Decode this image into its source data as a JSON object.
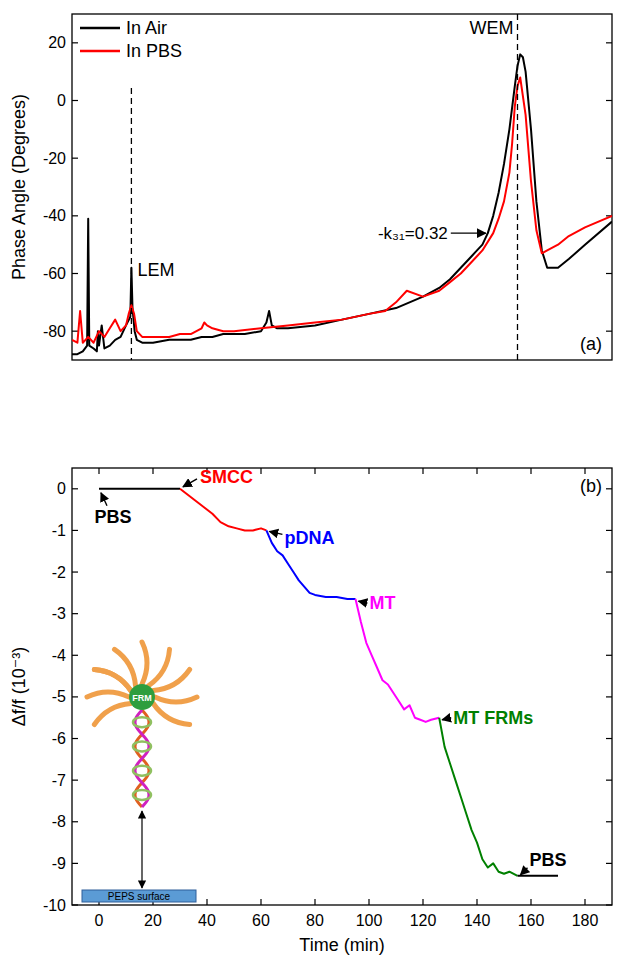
{
  "chart_data": [
    {
      "type": "line",
      "panel_label": "(a)",
      "y_label": "Phase Angle (Degrees)",
      "xlim": [
        0,
        100
      ],
      "ylim": [
        -90,
        30
      ],
      "yticks": [
        -80,
        -60,
        -40,
        -20,
        0,
        20
      ],
      "tick_labels": "y",
      "legend": "top-left",
      "series": [
        {
          "name": "In Air",
          "color": "#000000",
          "x": [
            0,
            1,
            2,
            2.8,
            3,
            3.2,
            4,
            4.6,
            4.8,
            5,
            5.5,
            6,
            7,
            8,
            9,
            10,
            10.8,
            11,
            11.2,
            11.6,
            12,
            13,
            15,
            18,
            20,
            22,
            24,
            25,
            26,
            28,
            32,
            35,
            36,
            36.5,
            37,
            38,
            40,
            45,
            50,
            55,
            60,
            65,
            68,
            70,
            72,
            74,
            75,
            76,
            77,
            78,
            79,
            80,
            81,
            82,
            82.5,
            83,
            83.5,
            84,
            85,
            86,
            87,
            88,
            90,
            92,
            95,
            100
          ],
          "values": [
            -88,
            -88,
            -87,
            -85,
            -41,
            -85,
            -86,
            -87,
            -80,
            -85,
            -78,
            -86,
            -85,
            -83,
            -82,
            -78,
            -75,
            -58,
            -72,
            -80,
            -83,
            -84,
            -84,
            -83,
            -83,
            -83,
            -82,
            -82,
            -82,
            -81,
            -81,
            -80,
            -77,
            -73,
            -78,
            -79,
            -79,
            -78,
            -76,
            -74,
            -72,
            -68,
            -65,
            -62,
            -58,
            -54,
            -52,
            -50,
            -46,
            -40,
            -32,
            -22,
            -10,
            5,
            12,
            16,
            15,
            10,
            -10,
            -35,
            -52,
            -58,
            -58,
            -55,
            -50,
            -42
          ]
        },
        {
          "name": "In PBS",
          "color": "#ff0000",
          "x": [
            0,
            1,
            1.5,
            2,
            2.5,
            3,
            4,
            5,
            6,
            7,
            8,
            9,
            10,
            10.5,
            11,
            11.5,
            12,
            13,
            15,
            18,
            20,
            22,
            24,
            24.5,
            25,
            26,
            28,
            30,
            35,
            40,
            45,
            50,
            55,
            58,
            60,
            62,
            65,
            68,
            70,
            72,
            74,
            76,
            78,
            79,
            80,
            81,
            81.5,
            82,
            82.5,
            83,
            84,
            85,
            86,
            87,
            88,
            90,
            92,
            95,
            100
          ],
          "values": [
            -83,
            -84,
            -73,
            -84,
            -83,
            -82,
            -84,
            -80,
            -82,
            -79,
            -76,
            -80,
            -78,
            -74,
            -71,
            -74,
            -80,
            -82,
            -82,
            -82,
            -81,
            -81,
            -79,
            -77,
            -78,
            -79,
            -80,
            -80,
            -79,
            -78,
            -77,
            -76,
            -74,
            -73,
            -70,
            -66,
            -68,
            -66,
            -63,
            -60,
            -56,
            -52,
            -46,
            -41,
            -35,
            -25,
            -15,
            -2,
            5,
            8,
            -5,
            -28,
            -45,
            -53,
            -52,
            -50,
            -47,
            -44,
            -40
          ]
        }
      ],
      "annotations": [
        {
          "text": "LEM",
          "x": 11,
          "line_style": "dashed"
        },
        {
          "text": "WEM",
          "x": 82.5,
          "line_style": "dashed"
        },
        {
          "text": "-k₃₁=0.32",
          "x": 77,
          "y": -46
        }
      ]
    },
    {
      "type": "line",
      "panel_label": "(b)",
      "x_label": "Time (min)",
      "y_label": "Δf/f (10⁻³)",
      "xlim": [
        -10,
        190
      ],
      "xticks": [
        0,
        20,
        40,
        60,
        80,
        100,
        120,
        140,
        160,
        180
      ],
      "ylim": [
        -10,
        0.5
      ],
      "yticks": [
        0,
        -1,
        -2,
        -3,
        -4,
        -5,
        -6,
        -7,
        -8,
        -9,
        -10
      ],
      "series": [
        {
          "name": "PBS",
          "color": "#000000",
          "x": [
            0,
            10,
            20,
            30
          ],
          "values": [
            0,
            0,
            0,
            0
          ]
        },
        {
          "name": "SMCC",
          "color": "#ff0000",
          "x": [
            30,
            33,
            36,
            39,
            42,
            45,
            48,
            51,
            54,
            57,
            60,
            62
          ],
          "values": [
            0,
            -0.15,
            -0.3,
            -0.45,
            -0.6,
            -0.8,
            -0.9,
            -0.95,
            -1.0,
            -1.0,
            -0.95,
            -1.0
          ]
        },
        {
          "name": "pDNA",
          "color": "#0000ff",
          "x": [
            62,
            64,
            66,
            68,
            70,
            72,
            74,
            76,
            78,
            80,
            84,
            88,
            92,
            95
          ],
          "values": [
            -1.0,
            -1.3,
            -1.5,
            -1.6,
            -1.8,
            -2.0,
            -2.2,
            -2.35,
            -2.5,
            -2.55,
            -2.6,
            -2.6,
            -2.65,
            -2.65
          ]
        },
        {
          "name": "MT",
          "color": "#ff00ff",
          "x": [
            95,
            97,
            99,
            101,
            103,
            105,
            107,
            109,
            111,
            113,
            115,
            117,
            119,
            121,
            123,
            126
          ],
          "values": [
            -2.65,
            -3.2,
            -3.7,
            -4.0,
            -4.3,
            -4.6,
            -4.7,
            -4.9,
            -5.1,
            -5.3,
            -5.2,
            -5.5,
            -5.55,
            -5.6,
            -5.55,
            -5.5
          ]
        },
        {
          "name": "MT FRMs",
          "color": "#008000",
          "x": [
            126,
            128,
            130,
            132,
            134,
            136,
            138,
            140,
            142,
            144,
            146,
            148,
            150,
            152,
            155
          ],
          "values": [
            -5.5,
            -6.2,
            -6.6,
            -7.0,
            -7.4,
            -7.8,
            -8.2,
            -8.5,
            -8.9,
            -9.1,
            -9.0,
            -9.2,
            -9.25,
            -9.2,
            -9.3
          ]
        },
        {
          "name": "PBS",
          "color": "#000000",
          "x": [
            155,
            160,
            165,
            170
          ],
          "values": [
            -9.3,
            -9.3,
            -9.3,
            -9.3
          ]
        }
      ],
      "inset": {
        "circle_label": "FRM",
        "surface_label": "PEPS surface"
      }
    }
  ]
}
